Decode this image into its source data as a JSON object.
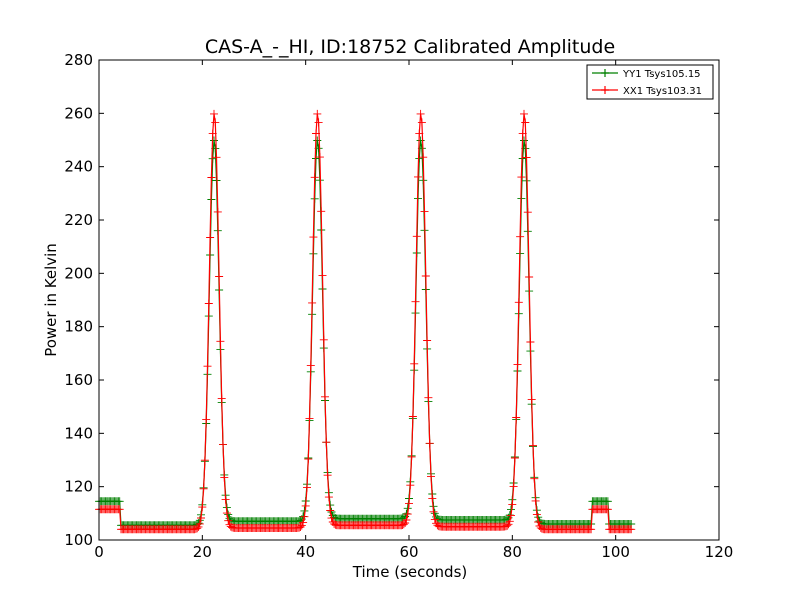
{
  "chart_data": {
    "type": "line",
    "title": "CAS-A_-_HI, ID:18752 Calibrated Amplitude",
    "xlabel": "Time (seconds)",
    "ylabel": "Power in Kelvin",
    "xlim": [
      0,
      120
    ],
    "ylim": [
      100,
      280
    ],
    "xticks": [
      "0",
      "20",
      "40",
      "60",
      "80",
      "100",
      "120"
    ],
    "yticks": [
      "100",
      "120",
      "140",
      "160",
      "180",
      "200",
      "220",
      "240",
      "260",
      "280"
    ],
    "grid": false,
    "legend_position": "top-right",
    "marker": "+",
    "series": [
      {
        "name": "YY1 Tsys105.15",
        "color": "#008000",
        "cal_level": 114.5,
        "cal_on": [
          [
            0,
            4
          ],
          [
            95.5,
            98.5
          ]
        ],
        "cal_end": 103,
        "peaks": [
          {
            "t": 22.3,
            "peak": 250,
            "baseline_before": 105.5,
            "baseline_after": 107
          },
          {
            "t": 42.3,
            "peak": 250,
            "baseline_before": 106,
            "baseline_after": 108
          },
          {
            "t": 62.3,
            "peak": 250,
            "baseline_before": 107,
            "baseline_after": 107.5
          },
          {
            "t": 82.3,
            "peak": 250,
            "baseline_before": 108,
            "baseline_after": 106
          }
        ]
      },
      {
        "name": "XX1 Tsys103.31",
        "color": "#ff0000",
        "cal_level": 111.5,
        "cal_on": [
          [
            0,
            4
          ],
          [
            95.5,
            98.5
          ]
        ],
        "cal_end": 103,
        "peaks": [
          {
            "t": 22.3,
            "peak": 260,
            "baseline_before": 104,
            "baseline_after": 104.5
          },
          {
            "t": 42.3,
            "peak": 260,
            "baseline_before": 104.5,
            "baseline_after": 105.5
          },
          {
            "t": 62.3,
            "peak": 260,
            "baseline_before": 105,
            "baseline_after": 105
          },
          {
            "t": 82.3,
            "peak": 260,
            "baseline_before": 105.5,
            "baseline_after": 104
          }
        ]
      }
    ]
  }
}
